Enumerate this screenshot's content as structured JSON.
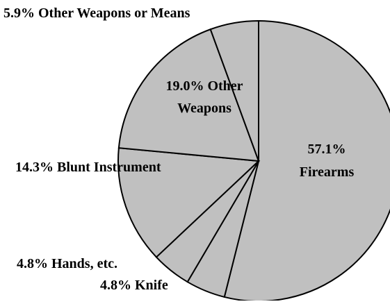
{
  "chart_data": {
    "type": "pie",
    "title": "",
    "slice_color": "#c0c0c0",
    "edge_color": "#000000",
    "background": "#ffffff",
    "slices": [
      {
        "label": "Firearms",
        "value": 57.1,
        "value_text": "57.1%"
      },
      {
        "label": "Knife",
        "value": 4.8,
        "value_text": "4.8%"
      },
      {
        "label": "Hands, etc.",
        "value": 4.8,
        "value_text": "4.8%"
      },
      {
        "label": "Blunt Instrument",
        "value": 14.3,
        "value_text": "14.3%"
      },
      {
        "label": "Other Weapons",
        "value": 19.0,
        "value_text": "19.0%"
      },
      {
        "label": "Other Weapons or Means",
        "value": 5.9,
        "value_text": "5.9%"
      }
    ],
    "labels": {
      "firearms_pct": "57.1%",
      "firearms_name": "Firearms",
      "knife": "4.8% Knife",
      "hands": "4.8% Hands, etc.",
      "blunt": "14.3% Blunt Instrument",
      "other_weapons_pct": "19.0% Other",
      "other_weapons_name": "Weapons",
      "other_means": "5.9% Other Weapons or Means"
    }
  }
}
